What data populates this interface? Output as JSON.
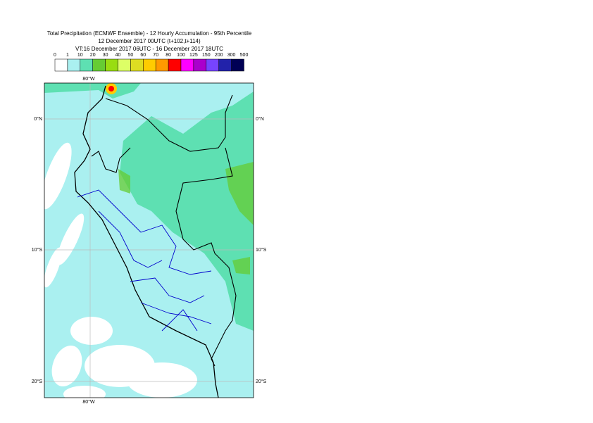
{
  "title": {
    "lines": [
      "Total Precipitation (ECMWF Ensemble) - 12 Hourly Accumulation - 95th Percentile",
      "12 December 2017 00UTC (t+102,t+114)",
      "VT:16 December 2017 06UTC - 16 December 2017 18UTC"
    ]
  },
  "legend": {
    "labels": [
      0,
      1,
      10,
      20,
      30,
      40,
      50,
      60,
      70,
      80,
      100,
      125,
      150,
      200,
      300,
      500
    ],
    "colors": [
      "#ffffff",
      "#aaf0f0",
      "#5ee0b2",
      "#66cc33",
      "#99dd11",
      "#ddff66",
      "#dddd22",
      "#ffcc00",
      "#ff9900",
      "#ff0000",
      "#ff00ff",
      "#aa00cc",
      "#7744ff",
      "#2222aa",
      "#000055"
    ]
  },
  "map": {
    "lon_label": "80°W",
    "lat_labels": [
      "0°N",
      "10°S",
      "20°S"
    ]
  }
}
